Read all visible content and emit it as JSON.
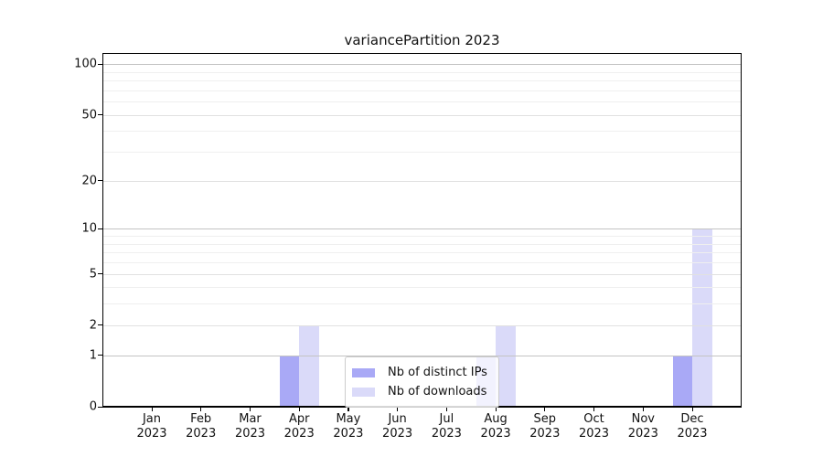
{
  "figure": {
    "background": "#ffffff"
  },
  "chart_data": {
    "type": "bar",
    "title": "variancePartition 2023",
    "xlabel": "",
    "ylabel": "",
    "categories": [
      "Jan",
      "Feb",
      "Mar",
      "Apr",
      "May",
      "Jun",
      "Jul",
      "Aug",
      "Sep",
      "Oct",
      "Nov",
      "Dec"
    ],
    "category_year": "2023",
    "series": [
      {
        "name": "Nb of distinct IPs",
        "color": "#a9a9f6",
        "values": [
          0,
          0,
          0,
          1,
          0,
          0,
          0,
          1,
          0,
          0,
          0,
          1
        ]
      },
      {
        "name": "Nb of downloads",
        "color": "#dadaf9",
        "values": [
          0,
          0,
          0,
          2,
          0,
          0,
          0,
          2,
          0,
          0,
          0,
          10
        ]
      }
    ],
    "y_axis": {
      "scale": "log1p",
      "tick_values": [
        0,
        1,
        2,
        5,
        10,
        20,
        50,
        100
      ],
      "decade_gridlines": [
        1,
        10,
        100
      ],
      "labeled_gridlines": [
        2,
        5,
        20,
        50
      ],
      "minor_gridlines": [
        3,
        4,
        6,
        7,
        8,
        9,
        30,
        40,
        60,
        70,
        80,
        90
      ],
      "max_value": 100
    },
    "legend": {
      "position": "lower center",
      "entries": [
        "Nb of distinct IPs",
        "Nb of downloads"
      ]
    },
    "grid": "horizontal only"
  },
  "colors": {
    "grid_decade": "#c3c3c3",
    "grid_labeled": "#e1e1e1",
    "grid_minor": "#efefef",
    "axis": "#000000",
    "text": "#111111",
    "legend_border": "#cccccc"
  }
}
